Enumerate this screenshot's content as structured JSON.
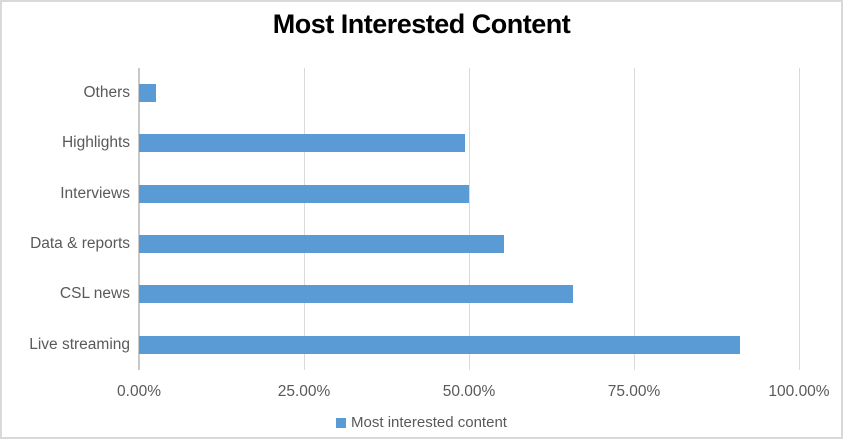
{
  "chart_data": {
    "type": "bar",
    "orientation": "horizontal",
    "title": "Most Interested Content",
    "categories": [
      "Others",
      "Highlights",
      "Interviews",
      "Data & reports",
      "CSL news",
      "Live streaming"
    ],
    "values": [
      2.5,
      49.4,
      50.0,
      55.3,
      65.8,
      91.1
    ],
    "value_unit": "percent",
    "xlim": [
      0,
      100
    ],
    "x_ticks": [
      "0.00%",
      "25.00%",
      "50.00%",
      "75.00%",
      "100.00%"
    ],
    "x_tick_values": [
      0,
      25,
      50,
      75,
      100
    ],
    "grid": true,
    "legend": {
      "label": "Most interested content",
      "position": "bottom"
    },
    "colors": {
      "bar": "#5b9bd5",
      "gridline": "#d9d9d9",
      "axis_line": "#c9c9c9",
      "label_text": "#595959",
      "title_text": "#000000",
      "chart_border": "#d9d9d9",
      "background": "#ffffff"
    }
  }
}
